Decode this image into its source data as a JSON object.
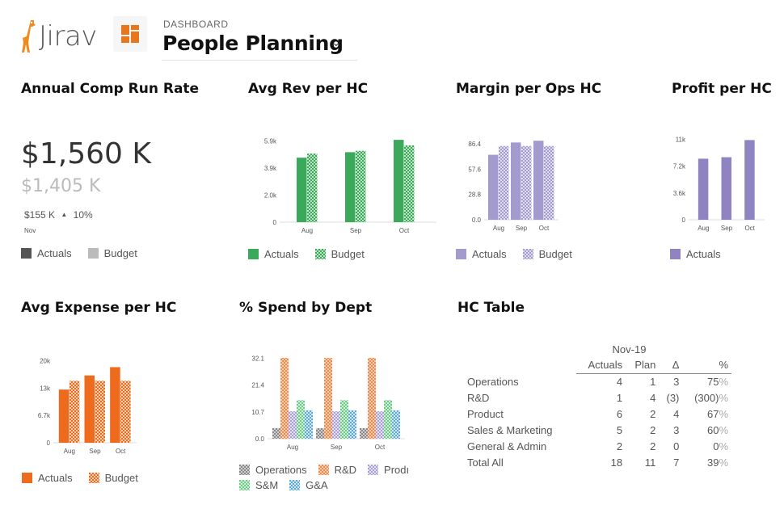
{
  "app": {
    "logo_text": "Jirav"
  },
  "header": {
    "crumb": "DASHBOARD",
    "title": "People Planning"
  },
  "colors": {
    "green": "#3aaa5a",
    "purple": "#8f84c1",
    "orange": "#ee6a1c",
    "dark": "#555555",
    "gray": "#bbbbbb"
  },
  "panels": {
    "comp": {
      "title": "Annual Comp Run Rate",
      "value": "$1,560 K",
      "budget": "$1,405 K",
      "variance": "$155 K",
      "variance_pct": "10%",
      "month": "Nov",
      "legend_actuals": "Actuals",
      "legend_budget": "Budget"
    },
    "rev": {
      "title": "Avg Rev per HC",
      "legend_actuals": "Actuals",
      "legend_budget": "Budget"
    },
    "margin": {
      "title": "Margin per Ops HC",
      "legend_actuals": "Actuals",
      "legend_budget": "Budget"
    },
    "profit": {
      "title": "Profit per HC",
      "legend_actuals": "Actuals"
    },
    "expense": {
      "title": "Avg Expense per HC",
      "legend_actuals": "Actuals",
      "legend_budget": "Budget"
    },
    "spend": {
      "title": "% Spend by Dept",
      "legend": [
        "Operations",
        "R&D",
        "Prodı",
        "S&M",
        "G&A"
      ]
    },
    "hc": {
      "title": "HC Table",
      "period": "Nov-19",
      "columns": [
        "Actuals",
        "Plan",
        "Δ",
        "%"
      ],
      "rows": [
        {
          "label": "Operations",
          "actuals": "4",
          "plan": "1",
          "delta": "3",
          "pct": "75"
        },
        {
          "label": "R&D",
          "actuals": "1",
          "plan": "4",
          "delta": "(3)",
          "pct": "(300)"
        },
        {
          "label": "Product",
          "actuals": "6",
          "plan": "2",
          "delta": "4",
          "pct": "67"
        },
        {
          "label": "Sales & Marketing",
          "actuals": "5",
          "plan": "2",
          "delta": "3",
          "pct": "60"
        },
        {
          "label": "General & Admin",
          "actuals": "2",
          "plan": "2",
          "delta": "0",
          "pct": "0"
        },
        {
          "label": "Total All",
          "actuals": "18",
          "plan": "11",
          "delta": "7",
          "pct": "39"
        }
      ],
      "pct_sign": "%"
    }
  },
  "chart_data": [
    {
      "id": "rev",
      "type": "bar",
      "title": "Avg Rev per HC",
      "categories": [
        "Aug",
        "Sep",
        "Oct"
      ],
      "yticks": [
        "0",
        "2.0k",
        "3.9k",
        "5.9k"
      ],
      "ylim": [
        0,
        6.3
      ],
      "series": [
        {
          "name": "Actuals",
          "values": [
            4.7,
            5.1,
            6.0
          ]
        },
        {
          "name": "Budget",
          "values": [
            5.0,
            5.2,
            5.6
          ]
        }
      ]
    },
    {
      "id": "margin",
      "type": "bar",
      "title": "Margin per Ops HC",
      "categories": [
        "Aug",
        "Sep",
        "Oct"
      ],
      "yticks": [
        "0.0",
        "28.8",
        "57.6",
        "86.4"
      ],
      "ylim": [
        0,
        92
      ],
      "series": [
        {
          "name": "Actuals",
          "values": [
            74,
            88,
            90
          ]
        },
        {
          "name": "Budget",
          "values": [
            84,
            84,
            84
          ]
        }
      ]
    },
    {
      "id": "profit",
      "type": "bar",
      "title": "Profit per HC",
      "categories": [
        "Aug",
        "Sep",
        "Oct"
      ],
      "yticks": [
        "0",
        "3.6k",
        "7.2k",
        "11k"
      ],
      "ylim": [
        0,
        11.5
      ],
      "series": [
        {
          "name": "Actuals",
          "values": [
            8.2,
            8.4,
            10.7
          ]
        }
      ]
    },
    {
      "id": "expense",
      "type": "bar",
      "title": "Avg Expense per HC",
      "categories": [
        "Aug",
        "Sep",
        "Oct"
      ],
      "yticks": [
        "0",
        "6.7k",
        "13k",
        "20k"
      ],
      "ylim": [
        0,
        21
      ],
      "series": [
        {
          "name": "Actuals",
          "values": [
            12.8,
            16.2,
            18.2
          ]
        },
        {
          "name": "Budget",
          "values": [
            14.9,
            14.9,
            14.9
          ]
        }
      ]
    },
    {
      "id": "spend",
      "type": "bar",
      "title": "% Spend by Dept",
      "categories": [
        "Aug",
        "Sep",
        "Oct"
      ],
      "yticks": [
        "0.0",
        "10.7",
        "21.4",
        "32.1"
      ],
      "ylim": [
        0,
        34
      ],
      "series": [
        {
          "name": "Operations",
          "values": [
            4.2,
            4.2,
            4.2
          ]
        },
        {
          "name": "R&D",
          "values": [
            32.1,
            32.1,
            32.1
          ]
        },
        {
          "name": "Product",
          "values": [
            10.9,
            10.9,
            10.9
          ]
        },
        {
          "name": "S&M",
          "values": [
            15.3,
            15.3,
            15.3
          ]
        },
        {
          "name": "G&A",
          "values": [
            11.3,
            11.3,
            11.3
          ]
        }
      ]
    }
  ]
}
